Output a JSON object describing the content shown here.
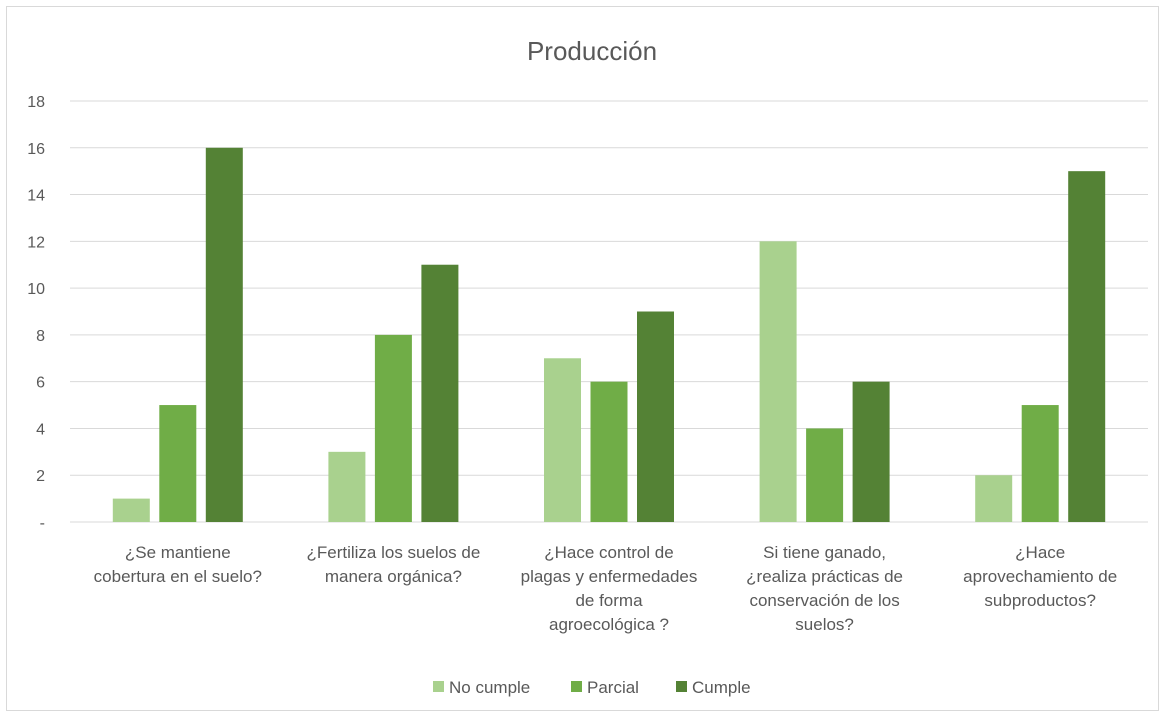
{
  "chart_data": {
    "type": "bar",
    "title": "Producción",
    "categories": [
      [
        "¿Se mantiene",
        "cobertura en el suelo?"
      ],
      [
        "¿Fertiliza los suelos de",
        "manera orgánica?"
      ],
      [
        "¿Hace control de",
        "plagas y enfermedades",
        "de forma",
        "agroecológica ?"
      ],
      [
        "Si tiene ganado,",
        "¿realiza prácticas de",
        "conservación de los",
        "suelos?"
      ],
      [
        "¿Hace",
        "aprovechamiento de",
        "subproductos?"
      ]
    ],
    "series": [
      {
        "name": "No cumple",
        "color": "#a9d18e",
        "values": [
          1,
          3,
          7,
          12,
          2
        ]
      },
      {
        "name": "Parcial",
        "color": "#70ad47",
        "values": [
          5,
          8,
          6,
          4,
          5
        ]
      },
      {
        "name": "Cumple",
        "color": "#548235",
        "values": [
          16,
          11,
          9,
          6,
          15
        ]
      }
    ],
    "ylim": [
      0,
      18
    ],
    "yticks": [
      0,
      2,
      4,
      6,
      8,
      10,
      12,
      14,
      16,
      18
    ],
    "ytick_labels": [
      "-",
      "2",
      "4",
      "6",
      "8",
      "10",
      "12",
      "14",
      "16",
      "18"
    ],
    "grid": true,
    "legend_position": "bottom"
  }
}
